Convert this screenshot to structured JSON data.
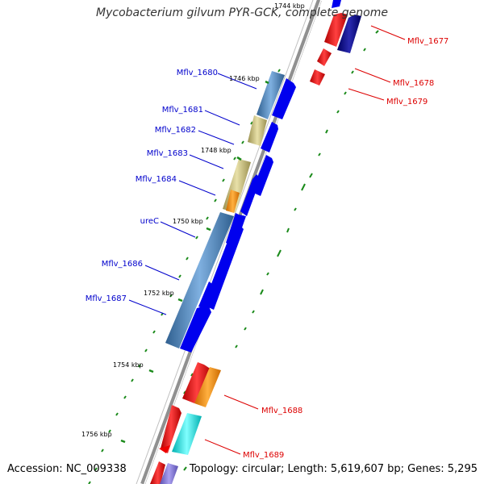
{
  "title": "Mycobacterium gilvum PYR-GCK, complete genome",
  "footer": {
    "accession": "Accession: NC_009338",
    "summary": "Topology: circular; Length: 5,619,607 bp; Genes: 5,295"
  },
  "ticks": [
    "1744 kbp",
    "1746 kbp",
    "1748 kbp",
    "1750 kbp",
    "1752 kbp",
    "1754 kbp",
    "1756 kbp"
  ],
  "genes": {
    "left": [
      "Mflv_1680",
      "Mflv_1681",
      "Mflv_1682",
      "Mflv_1683",
      "Mflv_1684",
      "ureC",
      "Mflv_1686",
      "Mflv_1687"
    ],
    "right": [
      "Mflv_1677",
      "Mflv_1678",
      "Mflv_1679",
      "Mflv_1688",
      "Mflv_1689"
    ]
  },
  "colors": {
    "left_label": "#0000cc",
    "right_label": "#dd0000",
    "cog_blue": "#4f86b8",
    "cog_khaki": "#c8c084",
    "gene_blue": "#0000ee",
    "gene_navy": "#000080",
    "gene_red": "#ee0000",
    "gene_orange": "#ff8c00",
    "gene_cyan": "#00e5e5",
    "gene_purple": "#7a6fd0",
    "tick_green": "#1a8a1a",
    "backbone": "#888888"
  }
}
